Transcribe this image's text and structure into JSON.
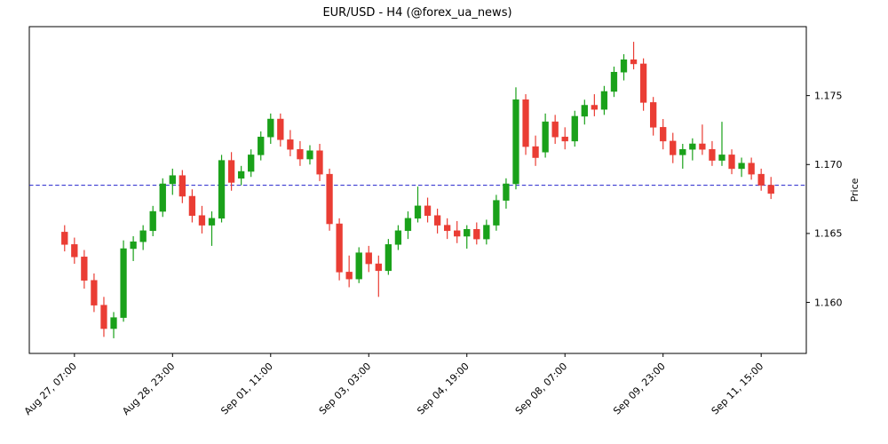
{
  "chart_data": {
    "type": "candlestick",
    "title": "EUR/USD - H4 (@forex_ua_news)",
    "ylabel": "Price",
    "xlabel": "",
    "ylim": [
      1.1563,
      1.18
    ],
    "grid": false,
    "legend": false,
    "y_tick_labels": [
      "1.160",
      "1.165",
      "1.170",
      "1.175"
    ],
    "x_tick_labels": [
      "Aug 27, 07:00",
      "Aug 28, 23:00",
      "Sep 01, 11:00",
      "Sep 03, 03:00",
      "Sep 04, 19:00",
      "Sep 08, 07:00",
      "Sep 09, 23:00",
      "Sep 11, 15:00"
    ],
    "x_tick_indices": [
      1,
      11,
      21,
      31,
      41,
      51,
      61,
      71
    ],
    "hline": {
      "value": 1.1685,
      "color": "#2222cc",
      "style": "dashed"
    },
    "colors": {
      "up": "#1aa11a",
      "down": "#ea3d34",
      "axis": "#000000"
    },
    "ohlc_order": [
      "open",
      "high",
      "low",
      "close"
    ],
    "candles": [
      [
        1.1651,
        1.1656,
        1.1637,
        1.1642
      ],
      [
        1.1642,
        1.1647,
        1.1628,
        1.1633
      ],
      [
        1.1633,
        1.1638,
        1.161,
        1.1616
      ],
      [
        1.1616,
        1.1621,
        1.1593,
        1.1598
      ],
      [
        1.1598,
        1.1604,
        1.1575,
        1.1581
      ],
      [
        1.1581,
        1.1593,
        1.1574,
        1.1589
      ],
      [
        1.1589,
        1.1645,
        1.1586,
        1.1639
      ],
      [
        1.1639,
        1.1648,
        1.163,
        1.1644
      ],
      [
        1.1644,
        1.1656,
        1.1638,
        1.1652
      ],
      [
        1.1652,
        1.167,
        1.1648,
        1.1666
      ],
      [
        1.1666,
        1.169,
        1.1662,
        1.1686
      ],
      [
        1.1686,
        1.1697,
        1.1678,
        1.1692
      ],
      [
        1.1692,
        1.1696,
        1.1672,
        1.1677
      ],
      [
        1.1677,
        1.1682,
        1.1658,
        1.1663
      ],
      [
        1.1663,
        1.167,
        1.165,
        1.1656
      ],
      [
        1.1656,
        1.1666,
        1.1641,
        1.1661
      ],
      [
        1.1661,
        1.1707,
        1.1658,
        1.1703
      ],
      [
        1.1703,
        1.1709,
        1.1681,
        1.1687
      ],
      [
        1.169,
        1.1699,
        1.1685,
        1.1695
      ],
      [
        1.1695,
        1.1711,
        1.1691,
        1.1707
      ],
      [
        1.1707,
        1.1724,
        1.1703,
        1.172
      ],
      [
        1.172,
        1.1737,
        1.1715,
        1.1733
      ],
      [
        1.1733,
        1.1737,
        1.1713,
        1.1718
      ],
      [
        1.1718,
        1.1725,
        1.1706,
        1.1711
      ],
      [
        1.1711,
        1.1717,
        1.1699,
        1.1704
      ],
      [
        1.1704,
        1.1714,
        1.17,
        1.171
      ],
      [
        1.171,
        1.1715,
        1.1688,
        1.1693
      ],
      [
        1.1693,
        1.1697,
        1.1652,
        1.1657
      ],
      [
        1.1657,
        1.1661,
        1.1616,
        1.1622
      ],
      [
        1.1622,
        1.1634,
        1.1611,
        1.1617
      ],
      [
        1.1617,
        1.164,
        1.1614,
        1.1636
      ],
      [
        1.1636,
        1.1641,
        1.1622,
        1.1628
      ],
      [
        1.1628,
        1.1634,
        1.1604,
        1.1623
      ],
      [
        1.1623,
        1.1646,
        1.162,
        1.1642
      ],
      [
        1.1642,
        1.1656,
        1.1638,
        1.1652
      ],
      [
        1.1652,
        1.1666,
        1.1646,
        1.1661
      ],
      [
        1.1661,
        1.1684,
        1.1658,
        1.167
      ],
      [
        1.167,
        1.1676,
        1.1658,
        1.1663
      ],
      [
        1.1663,
        1.1668,
        1.165,
        1.1656
      ],
      [
        1.1656,
        1.1661,
        1.1646,
        1.1652
      ],
      [
        1.1652,
        1.1659,
        1.1643,
        1.1648
      ],
      [
        1.1648,
        1.1656,
        1.1639,
        1.1653
      ],
      [
        1.1653,
        1.1658,
        1.1642,
        1.1646
      ],
      [
        1.1646,
        1.166,
        1.1642,
        1.1656
      ],
      [
        1.1656,
        1.1678,
        1.1652,
        1.1674
      ],
      [
        1.1674,
        1.169,
        1.1668,
        1.1686
      ],
      [
        1.1686,
        1.1756,
        1.1682,
        1.1747
      ],
      [
        1.1747,
        1.1751,
        1.1707,
        1.1713
      ],
      [
        1.1713,
        1.1721,
        1.1699,
        1.1705
      ],
      [
        1.1709,
        1.1737,
        1.1705,
        1.1731
      ],
      [
        1.1731,
        1.1736,
        1.1715,
        1.172
      ],
      [
        1.172,
        1.1727,
        1.1711,
        1.1717
      ],
      [
        1.1717,
        1.1739,
        1.1713,
        1.1735
      ],
      [
        1.1735,
        1.1747,
        1.1729,
        1.1743
      ],
      [
        1.1743,
        1.1751,
        1.1735,
        1.174
      ],
      [
        1.174,
        1.1757,
        1.1736,
        1.1753
      ],
      [
        1.1753,
        1.1771,
        1.1749,
        1.1767
      ],
      [
        1.1767,
        1.178,
        1.1761,
        1.1776
      ],
      [
        1.1776,
        1.1789,
        1.1769,
        1.1773
      ],
      [
        1.1773,
        1.1777,
        1.1739,
        1.1745
      ],
      [
        1.1745,
        1.1749,
        1.1721,
        1.1727
      ],
      [
        1.1727,
        1.1733,
        1.1711,
        1.1717
      ],
      [
        1.1717,
        1.1723,
        1.1701,
        1.1707
      ],
      [
        1.1707,
        1.1715,
        1.1697,
        1.1711
      ],
      [
        1.1711,
        1.1719,
        1.1703,
        1.1715
      ],
      [
        1.1715,
        1.1729,
        1.1707,
        1.1711
      ],
      [
        1.1711,
        1.1717,
        1.1699,
        1.1703
      ],
      [
        1.1703,
        1.1731,
        1.1699,
        1.1707
      ],
      [
        1.1707,
        1.1711,
        1.1693,
        1.1697
      ],
      [
        1.1697,
        1.1705,
        1.1691,
        1.1701
      ],
      [
        1.1701,
        1.1705,
        1.1689,
        1.1693
      ],
      [
        1.1693,
        1.1697,
        1.1681,
        1.1685
      ],
      [
        1.1685,
        1.1691,
        1.1675,
        1.1679
      ]
    ]
  }
}
